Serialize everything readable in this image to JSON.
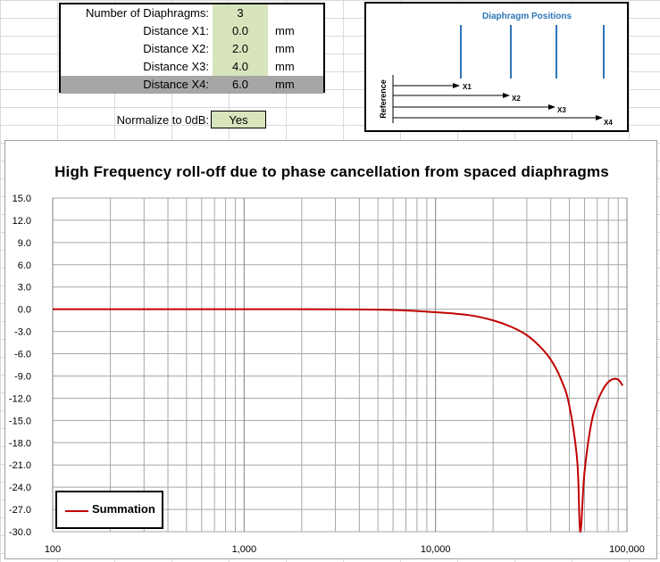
{
  "inputs": {
    "rows": [
      {
        "label": "Number of Diaphragms:",
        "value": "3",
        "unit": ""
      },
      {
        "label": "Distance X1:",
        "value": "0.0",
        "unit": "mm"
      },
      {
        "label": "Distance X2:",
        "value": "2.0",
        "unit": "mm"
      },
      {
        "label": "Distance X3:",
        "value": "4.0",
        "unit": "mm"
      },
      {
        "label": "Distance X4:",
        "value": "6.0",
        "unit": "mm"
      }
    ],
    "normalize": {
      "label": "Normalize to 0dB:",
      "value": "Yes"
    }
  },
  "diagram": {
    "title": "Diaphragm Positions",
    "reference_label": "Reference",
    "markers": [
      "X1",
      "X2",
      "X3",
      "X4"
    ],
    "colors": {
      "title": "#2e75b6",
      "diaphragm": "#2e75b6"
    }
  },
  "chart_data": {
    "type": "line",
    "title": "High Frequency roll-off due to phase cancellation from spaced diaphragms",
    "xlabel": "",
    "ylabel": "",
    "x_scale": "log",
    "xlim": [
      100,
      100000
    ],
    "ylim": [
      -30,
      15
    ],
    "x_ticks": [
      "100",
      "1,000",
      "10,000",
      "100,000"
    ],
    "y_ticks": [
      "15.0",
      "12.0",
      "9.0",
      "6.0",
      "3.0",
      "0.0",
      "-3.0",
      "-6.0",
      "-9.0",
      "-12.0",
      "-15.0",
      "-18.0",
      "-21.0",
      "-24.0",
      "-27.0",
      "-30.0"
    ],
    "grid": true,
    "legend_position": "bottom-left",
    "series": [
      {
        "name": "Summation",
        "color": "#c00000",
        "x": [
          100,
          1000,
          5000,
          10000,
          15000,
          20000,
          25000,
          30000,
          35000,
          40000,
          45000,
          50000,
          55000,
          57000,
          60000,
          65000,
          70000,
          75000,
          80000,
          85000,
          90000,
          95000
        ],
        "y": [
          0.0,
          0.0,
          -0.05,
          -0.4,
          -0.8,
          -1.5,
          -2.4,
          -3.5,
          -5.0,
          -6.8,
          -9.3,
          -13.0,
          -20.5,
          -30.0,
          -22.0,
          -15.5,
          -12.5,
          -10.8,
          -9.8,
          -9.4,
          -9.5,
          -10.3
        ]
      }
    ]
  }
}
